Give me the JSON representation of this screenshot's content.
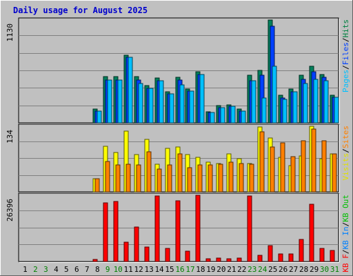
{
  "chart_data": {
    "type": "bar",
    "title": "Daily usage for August 2025",
    "x": [
      "1",
      "2",
      "3",
      "4",
      "5",
      "6",
      "7",
      "8",
      "9",
      "10",
      "11",
      "12",
      "13",
      "14",
      "15",
      "16",
      "17",
      "18",
      "19",
      "20",
      "21",
      "22",
      "23",
      "24",
      "25",
      "26",
      "27",
      "28",
      "29",
      "30",
      "31"
    ],
    "weekend_days": [
      "2",
      "3",
      "9",
      "10",
      "16",
      "17",
      "23",
      "24",
      "30",
      "31"
    ],
    "panels": [
      {
        "name": "hits",
        "ymax_label": "1130",
        "ymax": 1130,
        "legend": [
          {
            "text": "Pages",
            "color": "#00c0ff"
          },
          {
            "text": "/",
            "color": "#000000"
          },
          {
            "text": "Files",
            "color": "#0040ff"
          },
          {
            "text": "/",
            "color": "#000000"
          },
          {
            "text": "Hits",
            "color": "#008040"
          }
        ],
        "series": [
          {
            "name": "Hits",
            "color": "#00805c",
            "values": [
              0,
              0,
              0,
              0,
              0,
              0,
              0,
              150,
              510,
              510,
              740,
              510,
              410,
              490,
              340,
              500,
              370,
              560,
              120,
              190,
              200,
              150,
              520,
              580,
              1130,
              300,
              370,
              520,
              620,
              530,
              300
            ]
          },
          {
            "name": "Files",
            "color": "#0040ff",
            "values": [
              0,
              0,
              0,
              0,
              0,
              0,
              0,
              130,
              470,
              470,
              720,
              470,
              380,
              460,
              320,
              470,
              350,
              530,
              110,
              170,
              180,
              130,
              460,
              520,
              1060,
              270,
              340,
              480,
              560,
              500,
              280
            ]
          },
          {
            "name": "Pages",
            "color": "#00c0ff",
            "values": [
              0,
              0,
              0,
              0,
              0,
              0,
              0,
              130,
              470,
              470,
              720,
              430,
              380,
              460,
              320,
              420,
              350,
              530,
              110,
              170,
              180,
              130,
              460,
              270,
              620,
              260,
              340,
              430,
              480,
              460,
              280
            ]
          }
        ]
      },
      {
        "name": "visits",
        "ymax_label": "134",
        "ymax": 134,
        "legend": [
          {
            "text": "Visits",
            "color": "#e0e000"
          },
          {
            "text": "/",
            "color": "#000000"
          },
          {
            "text": "Sites",
            "color": "#ff8000"
          }
        ],
        "series": [
          {
            "name": "Visits",
            "color": "#ffff00",
            "values": [
              0,
              0,
              0,
              0,
              0,
              0,
              0,
              27,
              93,
              80,
              124,
              76,
              107,
              56,
              89,
              92,
              76,
              70,
              60,
              58,
              78,
              68,
              58,
              132,
              110,
              70,
              53,
              74,
              134,
              68,
              78
            ]
          },
          {
            "name": "Sites",
            "color": "#ff8000",
            "values": [
              0,
              0,
              0,
              0,
              0,
              0,
              0,
              27,
              62,
              55,
              57,
              55,
              82,
              46,
              55,
              78,
              50,
              55,
              55,
              57,
              60,
              58,
              57,
              123,
              92,
              100,
              72,
              104,
              128,
              104,
              78
            ]
          }
        ]
      },
      {
        "name": "kbytes",
        "ymax_label": "26396",
        "ymax": 26396,
        "legend": [
          {
            "text": "KB F",
            "color": "#ff0000"
          },
          {
            "text": "/",
            "color": "#000000"
          },
          {
            "text": "KB In",
            "color": "#0080ff"
          },
          {
            "text": "/",
            "color": "#000000"
          },
          {
            "text": "KB Out",
            "color": "#00c000"
          }
        ],
        "series": [
          {
            "name": "KB F",
            "color": "#ff0000",
            "values": [
              0,
              0,
              0,
              0,
              0,
              0,
              0,
              700,
              23500,
              23800,
              7700,
              13700,
              5900,
              26000,
              5100,
              24300,
              4000,
              26300,
              1100,
              1400,
              1100,
              1500,
              26200,
              2400,
              6200,
              2900,
              3100,
              8900,
              22800,
              5300,
              4400
            ]
          }
        ]
      }
    ]
  }
}
